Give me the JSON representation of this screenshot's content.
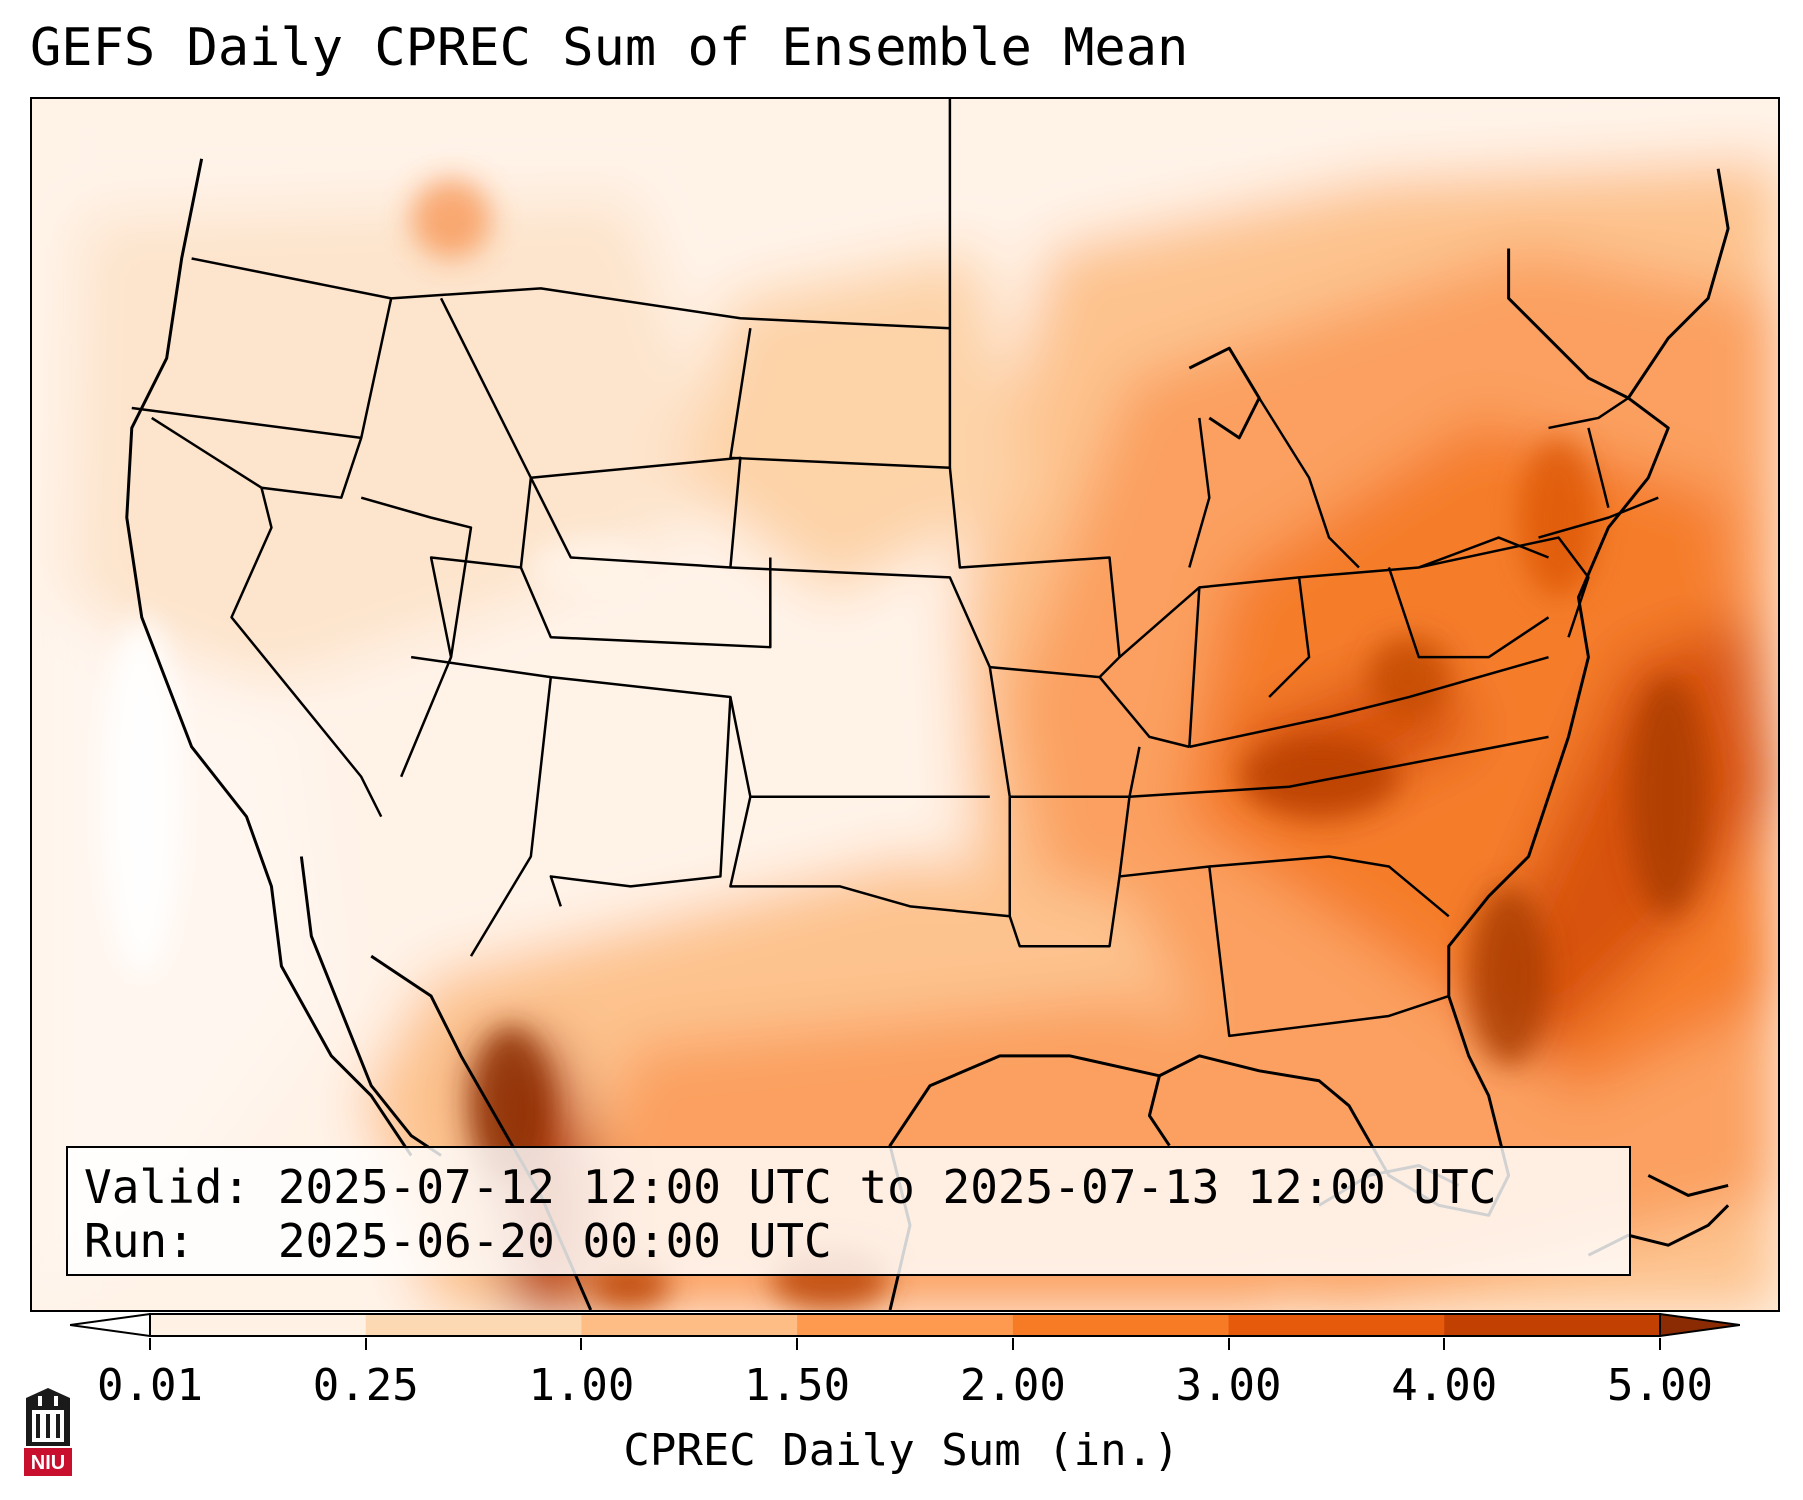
{
  "title": "GEFS Daily CPREC Sum of Ensemble Mean",
  "info": {
    "valid_line": "Valid: 2025-07-12 12:00 UTC to 2025-07-13 12:00 UTC",
    "run_line": "Run:   2025-06-20 00:00 UTC"
  },
  "colorbar": {
    "label": "CPREC Daily Sum (in.)",
    "ticks": [
      "0.01",
      "0.25",
      "1.00",
      "1.50",
      "2.00",
      "3.00",
      "4.00",
      "5.00"
    ],
    "colors": [
      "#fff1e3",
      "#fdd9b3",
      "#fdbd84",
      "#fd9a4f",
      "#f77a25",
      "#e65a0b",
      "#c24002"
    ],
    "under_color": "#ffffff",
    "over_color": "#8a2b04"
  },
  "logo": {
    "text": "NIU",
    "icon": "niu-building-logo-icon",
    "color": "#c8102e"
  }
}
